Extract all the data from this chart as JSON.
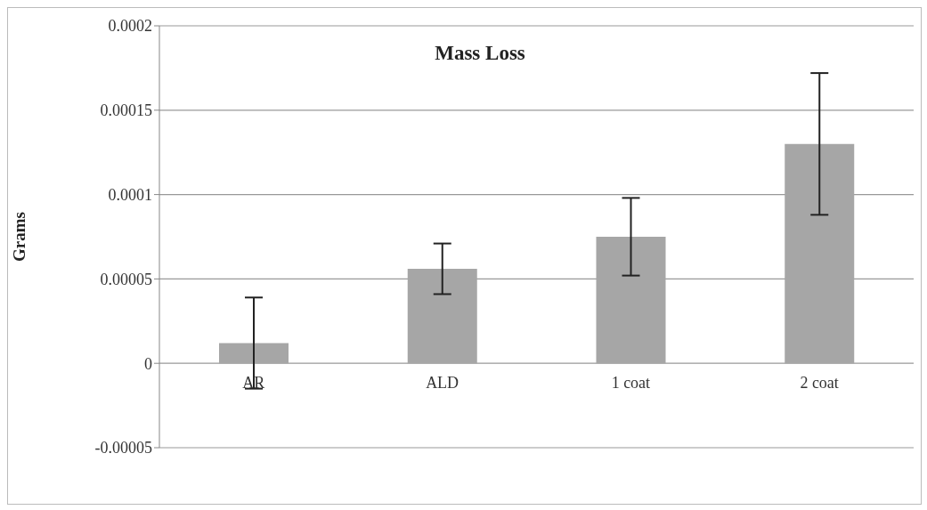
{
  "chart_data": {
    "type": "bar",
    "title": "Mass Loss",
    "ylabel": "Grams",
    "categories": [
      "AR",
      "ALD",
      "1 coat",
      "2 coat"
    ],
    "values": [
      1.2e-05,
      5.6e-05,
      7.5e-05,
      0.00013
    ],
    "errors": [
      2.7e-05,
      1.5e-05,
      2.3e-05,
      4.2e-05
    ],
    "color": "#a6a6a6",
    "ylim": [
      -5e-05,
      0.0002
    ],
    "yticks": [
      {
        "value": -5e-05,
        "label": "-0.00005"
      },
      0,
      {
        "value": 5e-05,
        "label": "0.00005"
      },
      0.0001,
      0.00015,
      0.0002
    ],
    "grid": "y"
  }
}
